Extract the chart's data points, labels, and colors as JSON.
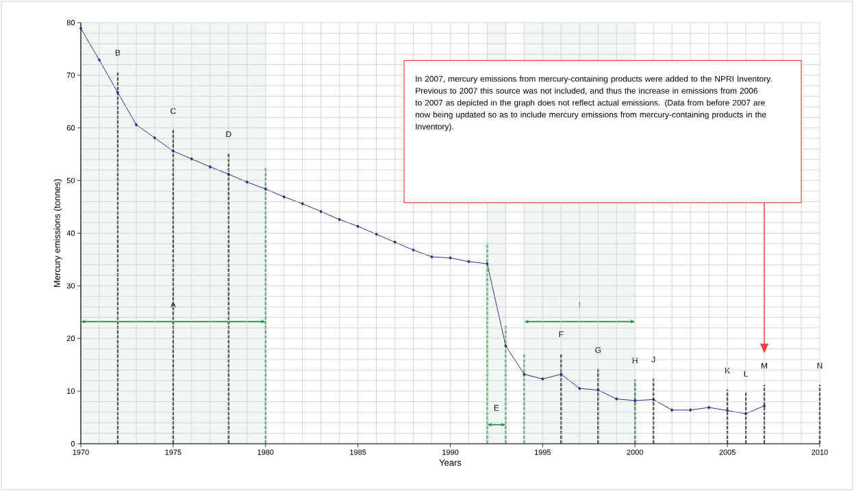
{
  "chart_data": {
    "type": "line",
    "xlabel": "Years",
    "ylabel": "Mercury emissions (tonnes)",
    "x": [
      1970,
      1971,
      1972,
      1973,
      1974,
      1975,
      1976,
      1977,
      1978,
      1979,
      1980,
      1981,
      1982,
      1983,
      1984,
      1985,
      1986,
      1987,
      1988,
      1989,
      1990,
      1991,
      1992,
      1993,
      1994,
      1995,
      1996,
      1997,
      1998,
      1999,
      2000,
      2001,
      2002,
      2003,
      2004,
      2005,
      2006,
      2007
    ],
    "series": [
      {
        "color": "#2b2b83",
        "values": [
          78.9,
          72.9,
          66.7,
          60.6,
          58.1,
          55.6,
          54.1,
          52.6,
          51.2,
          49.7,
          48.4,
          46.9,
          45.6,
          44.1,
          42.6,
          41.3,
          39.8,
          38.3,
          36.8,
          35.5,
          35.3,
          34.6,
          34.2,
          18.6,
          13.2,
          12.3,
          13.2,
          10.5,
          10.2,
          8.5,
          8.2,
          8.4,
          6.4,
          6.4,
          6.9,
          6.3,
          5.7,
          7.2
        ]
      }
    ],
    "marker": "diamond",
    "line_style": "solid",
    "grid": true,
    "xlim": [
      1970,
      2010
    ],
    "xticks": [
      1970,
      1975,
      1980,
      1985,
      1990,
      1995,
      2000,
      2005,
      2010
    ],
    "ylim": [
      0,
      80
    ],
    "yticks": [
      0,
      10,
      20,
      30,
      40,
      50,
      60,
      70,
      80
    ],
    "ref_lines": [
      {
        "axis": "x",
        "value": 1972,
        "label": "B",
        "color": "#000000",
        "line_style": "dashed"
      },
      {
        "axis": "x",
        "value": 1975,
        "label": "C",
        "color": "#000000",
        "line_style": "dashed"
      },
      {
        "axis": "x",
        "value": 1978,
        "label": "D",
        "color": "#000000",
        "line_style": "dashed"
      },
      {
        "axis": "x",
        "value": 1996,
        "label": "F",
        "color": "#000000",
        "line_style": "dashed"
      },
      {
        "axis": "x",
        "value": 1998,
        "label": "G",
        "color": "#000000",
        "line_style": "dashed"
      },
      {
        "axis": "x",
        "value": 2000,
        "label": "H",
        "color": "#000000",
        "line_style": "dashed"
      },
      {
        "axis": "x",
        "value": 2001,
        "label": "J",
        "color": "#000000",
        "line_style": "dashed"
      },
      {
        "axis": "x",
        "value": 2005,
        "label": "K",
        "color": "#000000",
        "line_style": "dashed"
      },
      {
        "axis": "x",
        "value": 2006,
        "label": "L",
        "color": "#000000",
        "line_style": "dashed"
      },
      {
        "axis": "x",
        "value": 2007,
        "label": "M",
        "color": "#000000",
        "line_style": "dashed"
      },
      {
        "axis": "x",
        "value": 2010,
        "label": "N",
        "color": "#000000",
        "line_style": "dashed"
      },
      {
        "axis": "x",
        "value": 1980,
        "color": "#1a8a3c",
        "line_style": "dashed"
      },
      {
        "axis": "x",
        "value": 1992,
        "color": "#1a8a3c",
        "line_style": "dashed"
      },
      {
        "axis": "x",
        "value": 1993,
        "color": "#1a8a3c",
        "line_style": "dashed"
      },
      {
        "axis": "x",
        "value": 1994,
        "color": "#1a8a3c",
        "line_style": "dashed"
      },
      {
        "axis": "x",
        "value": 2000,
        "color": "#1a8a3c",
        "line_style": "dashed"
      }
    ],
    "bands": [
      {
        "axis": "x",
        "from": 1970,
        "to": 1980,
        "label": "A"
      },
      {
        "axis": "x",
        "from": 1992,
        "to": 1993,
        "label": "E"
      },
      {
        "axis": "x",
        "from": 1994,
        "to": 2000,
        "label": "I"
      }
    ],
    "annotations": [
      "In 2007, mercury emissions from mercury-containing products were added to the NPRI Inventory. Previous to 2007 this source was not included, and thus the increase in emissions from 2006 to 2007 as depicted in the graph does not reflect actual emissions. (Data from before 2007 are now being updated so as to include mercury emissions from mercury-containing products in the Inventory)."
    ]
  }
}
